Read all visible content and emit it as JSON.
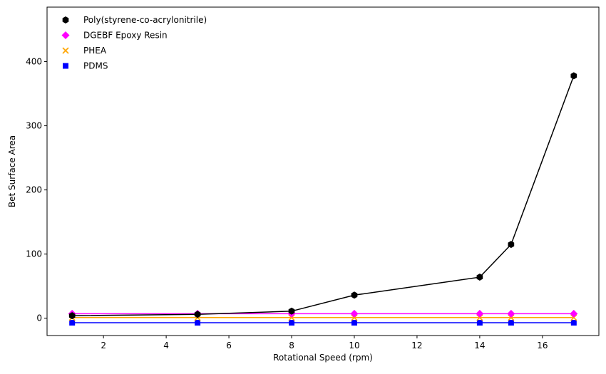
{
  "chart_data": {
    "type": "line",
    "title": "",
    "xlabel": "Rotational Speed (rpm)",
    "ylabel": "Bet Surface Area",
    "xlim": [
      0.2,
      17.8
    ],
    "ylim": [
      -27,
      485
    ],
    "xticks": [
      2,
      4,
      6,
      8,
      10,
      12,
      14,
      16
    ],
    "yticks": [
      0,
      100,
      200,
      300,
      400
    ],
    "grid": false,
    "legend_position": "top-left",
    "x": [
      1,
      5,
      8,
      10,
      14,
      15,
      17
    ],
    "series": [
      {
        "name": "Poly(styrene-co-acrylonitrile)",
        "color": "#000000",
        "marker": "hexagon",
        "values": [
          4,
          6,
          11,
          36,
          64,
          115,
          378
        ]
      },
      {
        "name": "DGEBF Epoxy Resin",
        "color": "#ff00ff",
        "marker": "diamond",
        "values": [
          7,
          7,
          7,
          7,
          7,
          7,
          7
        ]
      },
      {
        "name": "PHEA",
        "color": "#ffa500",
        "marker": "x",
        "values": [
          1,
          1,
          1,
          1,
          1,
          1,
          1
        ]
      },
      {
        "name": "PDMS",
        "color": "#0000ff",
        "marker": "square",
        "values": [
          -7,
          -7,
          -7,
          -7,
          -7,
          -7,
          -7
        ]
      }
    ]
  }
}
